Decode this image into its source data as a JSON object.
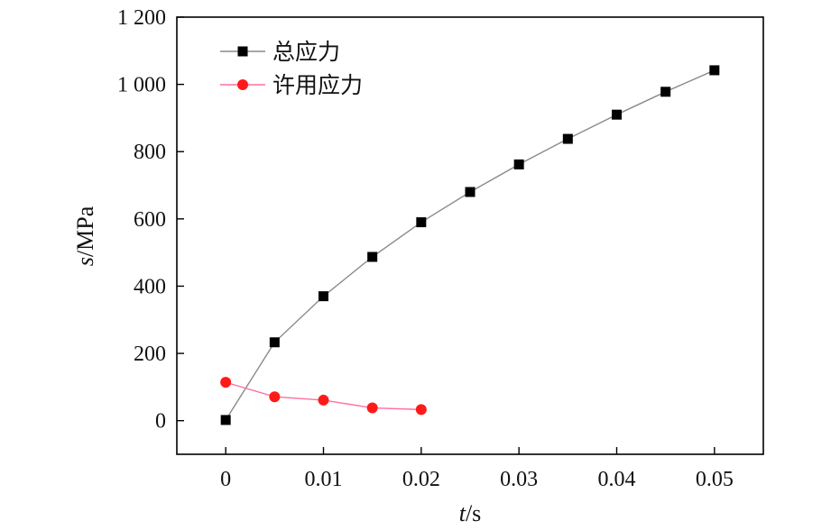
{
  "chart_data": {
    "type": "line",
    "xlabel_var": "t",
    "xlabel_unit": "/s",
    "ylabel_var": "s",
    "ylabel_unit": "/MPa",
    "xlim": [
      -0.005,
      0.055
    ],
    "ylim": [
      -100,
      1200
    ],
    "xticks": [
      0,
      0.01,
      0.02,
      0.03,
      0.04,
      0.05
    ],
    "xtick_labels": [
      "0",
      "0.01",
      "0.02",
      "0.03",
      "0.04",
      "0.05"
    ],
    "yticks": [
      0,
      200,
      400,
      600,
      800,
      1000,
      1200
    ],
    "ytick_labels": [
      "0",
      "200",
      "400",
      "600",
      "800",
      "1 000",
      "1 200"
    ],
    "grid": false,
    "legend_position": "top-left",
    "series": [
      {
        "name": "总应力",
        "marker": "square",
        "color": "#000000",
        "line_color": "#8a8a8a",
        "x": [
          0,
          0.005,
          0.01,
          0.015,
          0.02,
          0.025,
          0.03,
          0.035,
          0.04,
          0.045,
          0.05
        ],
        "y": [
          2,
          233,
          370,
          487,
          590,
          680,
          762,
          838,
          910,
          978,
          1042
        ]
      },
      {
        "name": "许用应力",
        "marker": "circle",
        "color": "#ff1a1a",
        "line_color": "#ff6fa0",
        "x": [
          0,
          0.005,
          0.01,
          0.015,
          0.02
        ],
        "y": [
          114,
          71,
          61,
          38,
          33
        ]
      }
    ]
  }
}
